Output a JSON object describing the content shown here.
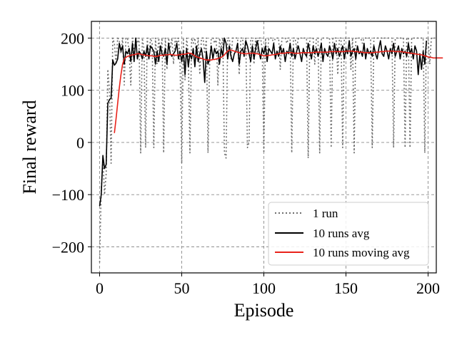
{
  "chart_data": {
    "type": "line",
    "title": "",
    "xlabel": "Episode",
    "ylabel": "Final reward",
    "xlim": [
      -5,
      205
    ],
    "ylim": [
      -250,
      232
    ],
    "xticks": [
      0,
      50,
      100,
      150,
      200
    ],
    "yticks": [
      -200,
      -100,
      0,
      100,
      200
    ],
    "xtick_labels": [
      "0",
      "50",
      "100",
      "150",
      "200"
    ],
    "ytick_labels": [
      "−200",
      "−100",
      "0",
      "100",
      "200"
    ],
    "grid": true,
    "legend_position": "bottom-right",
    "series": [
      {
        "name": "1 run",
        "style": "dotted",
        "color": "#6e6e6e",
        "x_start": 0,
        "values": [
          -230,
          -90,
          -30,
          -100,
          -60,
          140,
          100,
          -40,
          200,
          190,
          150,
          200,
          195,
          170,
          200,
          110,
          200,
          200,
          170,
          110,
          200,
          170,
          200,
          190,
          200,
          -20,
          200,
          180,
          -10,
          200,
          165,
          200,
          190,
          -10,
          200,
          150,
          200,
          170,
          200,
          -20,
          200,
          140,
          200,
          180,
          200,
          150,
          200,
          190,
          200,
          150,
          -40,
          200,
          120,
          200,
          170,
          -20,
          200,
          190,
          200,
          160,
          200,
          130,
          200,
          200,
          170,
          200,
          -20,
          150,
          200,
          200,
          190,
          200,
          110,
          200,
          180,
          200,
          -20,
          -30,
          200,
          200,
          160,
          200,
          200,
          200,
          200,
          130,
          200,
          200,
          170,
          200,
          -10,
          0,
          200,
          200,
          150,
          200,
          170,
          200,
          200,
          180,
          -20,
          200,
          160,
          200,
          200,
          200,
          190,
          200,
          200,
          200,
          140,
          200,
          200,
          200,
          190,
          200,
          200,
          -20,
          200,
          200,
          180,
          200,
          200,
          200,
          200,
          200,
          200,
          -30,
          200,
          200,
          200,
          150,
          200,
          200,
          -20,
          200,
          200,
          200,
          200,
          200,
          200,
          -10,
          200,
          200,
          200,
          130,
          200,
          200,
          -10,
          200,
          200,
          200,
          200,
          140,
          200,
          -20,
          200,
          200,
          200,
          200,
          190,
          200,
          200,
          200,
          200,
          200,
          -10,
          200,
          200,
          200,
          200,
          200,
          200,
          200,
          200,
          200,
          200,
          200,
          200,
          -10,
          200,
          200,
          200,
          200,
          200,
          200,
          -10,
          200,
          200,
          -10,
          200,
          200,
          200,
          200,
          200,
          200,
          200,
          200,
          -20,
          200,
          200,
          150,
          200,
          200,
          200,
          200
        ]
      },
      {
        "name": "10 runs avg",
        "style": "solid",
        "color": "#000000",
        "x_start": 0,
        "values": [
          -122,
          -100,
          -25,
          -50,
          -42,
          75,
          82,
          85,
          158,
          148,
          152,
          160,
          190,
          175,
          185,
          150,
          175,
          170,
          180,
          155,
          190,
          155,
          200,
          160,
          175,
          170,
          160,
          175,
          165,
          185,
          160,
          185,
          180,
          175,
          150,
          175,
          155,
          185,
          170,
          165,
          180,
          150,
          190,
          170,
          165,
          170,
          175,
          190,
          160,
          175,
          155,
          175,
          130,
          180,
          145,
          170,
          160,
          180,
          145,
          185,
          155,
          170,
          180,
          160,
          115,
          175,
          150,
          160,
          185,
          160,
          180,
          170,
          175,
          150,
          180,
          165,
          200,
          190,
          160,
          185,
          165,
          155,
          170,
          175,
          190,
          150,
          175,
          180,
          165,
          195,
          185,
          170,
          155,
          185,
          160,
          180,
          195,
          175,
          160,
          180,
          170,
          185,
          155,
          180,
          175,
          170,
          190,
          160,
          175,
          165,
          185,
          170,
          180,
          155,
          175,
          170,
          190,
          165,
          180,
          160,
          175,
          185,
          170,
          155,
          180,
          170,
          165,
          190,
          175,
          160,
          185,
          170,
          180,
          165,
          175,
          190,
          155,
          180,
          170,
          165,
          185,
          175,
          160,
          190,
          170,
          180,
          165,
          175,
          185,
          160,
          180,
          170,
          195,
          165,
          175,
          180,
          160,
          185,
          170,
          175,
          165,
          190,
          160,
          180,
          170,
          175,
          165,
          185,
          170,
          160,
          180,
          195,
          170,
          165,
          185,
          175,
          160,
          180,
          170,
          190,
          165,
          175,
          185,
          160,
          180,
          170,
          175,
          165,
          190,
          170,
          180,
          160,
          185,
          175,
          130,
          170,
          140,
          175,
          150,
          195
        ]
      },
      {
        "name": "10 runs moving avg",
        "style": "solid",
        "color": "#e8221a",
        "x_start": 9,
        "values": [
          18,
          45,
          75,
          105,
          130,
          150,
          160,
          163,
          165,
          166,
          167,
          168,
          168,
          169,
          170,
          170,
          169,
          168,
          168,
          167,
          167,
          166,
          166,
          166,
          165,
          165,
          165,
          166,
          167,
          167,
          167,
          168,
          168,
          168,
          169,
          168,
          168,
          167,
          167,
          168,
          168,
          169,
          169,
          169,
          170,
          171,
          171,
          170,
          168,
          166,
          164,
          163,
          162,
          161,
          160,
          159,
          158,
          158,
          158,
          158,
          159,
          159,
          160,
          161,
          162,
          163,
          165,
          168,
          172,
          175,
          177,
          177,
          176,
          175,
          174,
          173,
          172,
          171,
          171,
          170,
          170,
          170,
          171,
          171,
          171,
          171,
          170,
          170,
          169,
          168,
          167,
          166,
          166,
          166,
          167,
          167,
          168,
          168,
          169,
          169,
          170,
          171,
          171,
          171,
          171,
          172,
          172,
          172,
          172,
          171,
          171,
          171,
          171,
          171,
          172,
          172,
          172,
          172,
          172,
          172,
          172,
          172,
          173,
          173,
          173,
          173,
          173,
          173,
          173,
          173,
          173,
          174,
          174,
          174,
          174,
          174,
          174,
          174,
          174,
          174,
          174,
          175,
          175,
          175,
          175,
          175,
          174,
          174,
          174,
          173,
          173,
          173,
          172,
          172,
          172,
          172,
          172,
          172,
          172,
          173,
          173,
          173,
          174,
          174,
          174,
          175,
          175,
          175,
          175,
          175,
          175,
          174,
          174,
          174,
          174,
          174,
          173,
          173,
          172,
          172,
          171,
          171,
          170,
          170,
          169,
          169,
          168,
          168,
          167,
          166,
          165,
          164,
          163,
          163,
          162,
          162,
          162,
          162,
          162,
          162,
          162
        ]
      }
    ]
  }
}
